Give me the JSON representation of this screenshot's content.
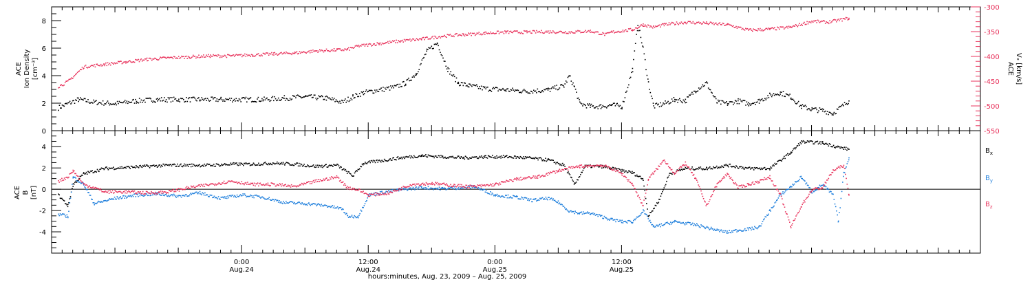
{
  "chart_data": [
    {
      "type": "scatter",
      "panel": "top",
      "title": "",
      "left_axis": {
        "label_lines": [
          "ACE",
          "Ion Density",
          "[cm⁻³]"
        ],
        "ylim": [
          0,
          9
        ],
        "ticks": [
          0,
          2,
          4,
          6,
          8
        ],
        "color": "#000000"
      },
      "right_axis": {
        "label_lines": [
          "ACE",
          "Vₓ [km/s]"
        ],
        "ylim": [
          -550,
          -300
        ],
        "ticks": [
          -550,
          -500,
          -450,
          -400,
          -350,
          -300
        ],
        "color": "#e8335c"
      },
      "series": [
        {
          "color": "#000000",
          "axis": "left",
          "points": [
            [
              -17.4,
              1.7
            ],
            [
              -16.5,
              2.0
            ],
            [
              -15.5,
              2.3
            ],
            [
              -14,
              2.1
            ],
            [
              -12,
              2.0
            ],
            [
              -10,
              2.2
            ],
            [
              -8,
              2.3
            ],
            [
              -6,
              2.3
            ],
            [
              -4,
              2.3
            ],
            [
              -2,
              2.3
            ],
            [
              0,
              2.3
            ],
            [
              2,
              2.3
            ],
            [
              4,
              2.4
            ],
            [
              6,
              2.5
            ],
            [
              8,
              2.4
            ],
            [
              9.5,
              2.1
            ],
            [
              10.5,
              2.5
            ],
            [
              11.5,
              2.8
            ],
            [
              13,
              3.0
            ],
            [
              14.5,
              3.2
            ],
            [
              15.5,
              3.5
            ],
            [
              16.5,
              4.2
            ],
            [
              17.5,
              5.8
            ],
            [
              18.5,
              6.4
            ],
            [
              19.5,
              4.5
            ],
            [
              20.5,
              3.5
            ],
            [
              21.5,
              3.3
            ],
            [
              23,
              3.1
            ],
            [
              25,
              3.0
            ],
            [
              27,
              2.9
            ],
            [
              29,
              3.0
            ],
            [
              30.5,
              3.3
            ],
            [
              31,
              4.0
            ],
            [
              31.5,
              3.2
            ],
            [
              32,
              2.0
            ],
            [
              33,
              1.8
            ],
            [
              34,
              1.8
            ],
            [
              35,
              1.9
            ],
            [
              36,
              1.8
            ],
            [
              37,
              4.5
            ],
            [
              37.5,
              7.8
            ],
            [
              38,
              6.0
            ],
            [
              38.5,
              3.5
            ],
            [
              39,
              1.8
            ],
            [
              40,
              2.0
            ],
            [
              41,
              2.3
            ],
            [
              42,
              2.2
            ],
            [
              43,
              3.0
            ],
            [
              44,
              3.5
            ],
            [
              45,
              2.1
            ],
            [
              46,
              2.0
            ],
            [
              47,
              2.2
            ],
            [
              48,
              2.0
            ],
            [
              49,
              2.2
            ],
            [
              50,
              2.6
            ],
            [
              51,
              2.8
            ],
            [
              52,
              2.5
            ],
            [
              53,
              1.8
            ],
            [
              54,
              1.6
            ],
            [
              55,
              1.5
            ],
            [
              56,
              1.3
            ],
            [
              57.5,
              2.2
            ]
          ]
        },
        {
          "color": "#e8335c",
          "axis": "right",
          "points": [
            [
              -17.4,
              -460
            ],
            [
              -16.5,
              -450
            ],
            [
              -15,
              -420
            ],
            [
              -13,
              -415
            ],
            [
              -11,
              -410
            ],
            [
              -9,
              -405
            ],
            [
              -7,
              -402
            ],
            [
              -5,
              -400
            ],
            [
              -3,
              -398
            ],
            [
              -1,
              -398
            ],
            [
              1,
              -396
            ],
            [
              3,
              -394
            ],
            [
              5,
              -392
            ],
            [
              7,
              -388
            ],
            [
              9,
              -386
            ],
            [
              10,
              -385
            ],
            [
              11,
              -378
            ],
            [
              13,
              -373
            ],
            [
              15,
              -368
            ],
            [
              17,
              -364
            ],
            [
              19,
              -358
            ],
            [
              21,
              -355
            ],
            [
              23,
              -352
            ],
            [
              25,
              -350
            ],
            [
              27,
              -350
            ],
            [
              29,
              -349
            ],
            [
              31,
              -350
            ],
            [
              33,
              -348
            ],
            [
              34.5,
              -355
            ],
            [
              35,
              -350
            ],
            [
              37,
              -345
            ],
            [
              38,
              -335
            ],
            [
              39,
              -340
            ],
            [
              40,
              -335
            ],
            [
              42,
              -330
            ],
            [
              44,
              -332
            ],
            [
              46,
              -335
            ],
            [
              48,
              -346
            ],
            [
              50,
              -344
            ],
            [
              52,
              -340
            ],
            [
              54,
              -328
            ],
            [
              55.5,
              -330
            ],
            [
              57.5,
              -322
            ]
          ]
        }
      ]
    },
    {
      "type": "scatter",
      "panel": "bottom",
      "title": "",
      "left_axis": {
        "label_lines": [
          "ACE",
          "B",
          "[nT]"
        ],
        "ylim": [
          -6,
          5.5
        ],
        "ticks": [
          -4,
          -2,
          0,
          2,
          4
        ],
        "color": "#000000"
      },
      "zero_line": true,
      "legend": "right",
      "series": [
        {
          "name": "Bx",
          "name_main": "B",
          "name_sub": "x",
          "color": "#000000",
          "points": [
            [
              -17.4,
              -0.5
            ],
            [
              -16.5,
              -1.5
            ],
            [
              -16,
              0.5
            ],
            [
              -15,
              1.5
            ],
            [
              -13,
              2.0
            ],
            [
              -11,
              2.1
            ],
            [
              -9,
              2.2
            ],
            [
              -7,
              2.3
            ],
            [
              -5,
              2.3
            ],
            [
              -3,
              2.3
            ],
            [
              -1,
              2.4
            ],
            [
              1,
              2.4
            ],
            [
              3,
              2.5
            ],
            [
              5,
              2.4
            ],
            [
              7,
              2.2
            ],
            [
              9,
              2.3
            ],
            [
              10.5,
              1.3
            ],
            [
              11.5,
              2.5
            ],
            [
              13,
              2.7
            ],
            [
              15,
              3.0
            ],
            [
              17,
              3.2
            ],
            [
              19,
              3.1
            ],
            [
              21,
              3.0
            ],
            [
              23,
              3.1
            ],
            [
              25,
              3.1
            ],
            [
              27,
              3.0
            ],
            [
              29,
              2.8
            ],
            [
              30.5,
              2.3
            ],
            [
              31.5,
              0.5
            ],
            [
              32.5,
              2.2
            ],
            [
              34,
              2.2
            ],
            [
              36,
              1.8
            ],
            [
              37,
              1.6
            ],
            [
              38,
              1.0
            ],
            [
              38.5,
              -2.5
            ],
            [
              39.5,
              -1.0
            ],
            [
              40.5,
              1.5
            ],
            [
              42,
              2.0
            ],
            [
              44,
              2.0
            ],
            [
              46,
              2.3
            ],
            [
              48,
              2.0
            ],
            [
              50,
              2.0
            ],
            [
              52,
              3.5
            ],
            [
              53,
              4.5
            ],
            [
              55,
              4.4
            ],
            [
              56.5,
              4.0
            ],
            [
              57.5,
              3.8
            ]
          ]
        },
        {
          "name": "By",
          "name_main": "B",
          "name_sub": "y",
          "color": "#1f7fdc",
          "points": [
            [
              -17.4,
              -2.3
            ],
            [
              -16.5,
              -2.5
            ],
            [
              -16,
              1.2
            ],
            [
              -15,
              0.5
            ],
            [
              -14,
              -1.3
            ],
            [
              -12,
              -0.8
            ],
            [
              -10,
              -0.5
            ],
            [
              -8,
              -0.4
            ],
            [
              -6,
              -0.6
            ],
            [
              -4,
              -0.3
            ],
            [
              -2,
              -0.8
            ],
            [
              0,
              -0.5
            ],
            [
              2,
              -0.7
            ],
            [
              4,
              -1.2
            ],
            [
              6,
              -1.3
            ],
            [
              8,
              -1.5
            ],
            [
              9.5,
              -1.8
            ],
            [
              10,
              -2.5
            ],
            [
              11,
              -2.5
            ],
            [
              12,
              -0.5
            ],
            [
              13,
              -0.3
            ],
            [
              15,
              0.0
            ],
            [
              17,
              0.2
            ],
            [
              19,
              0.1
            ],
            [
              21,
              0.2
            ],
            [
              22,
              0.3
            ],
            [
              24,
              -0.5
            ],
            [
              26,
              -0.7
            ],
            [
              27.5,
              -1.0
            ],
            [
              29,
              -0.8
            ],
            [
              30,
              -1.2
            ],
            [
              31,
              -2.0
            ],
            [
              32,
              -2.2
            ],
            [
              33,
              -2.2
            ],
            [
              34,
              -2.5
            ],
            [
              35,
              -2.8
            ],
            [
              36,
              -3.0
            ],
            [
              37,
              -3.0
            ],
            [
              38,
              -2.0
            ],
            [
              39,
              -3.5
            ],
            [
              41,
              -3.0
            ],
            [
              43,
              -3.3
            ],
            [
              45,
              -3.8
            ],
            [
              46,
              -4.0
            ],
            [
              47,
              -3.8
            ],
            [
              48,
              -3.7
            ],
            [
              49,
              -3.5
            ],
            [
              50,
              -2.0
            ],
            [
              51,
              -0.5
            ],
            [
              52,
              0.3
            ],
            [
              53,
              1.2
            ],
            [
              54,
              -0.2
            ],
            [
              55,
              0.5
            ],
            [
              56,
              -0.5
            ],
            [
              56.5,
              -3.0
            ],
            [
              57,
              1.5
            ],
            [
              57.5,
              3.0
            ]
          ]
        },
        {
          "name": "Bz",
          "name_main": "B",
          "name_sub": "z",
          "color": "#e8335c",
          "points": [
            [
              -17.4,
              0.8
            ],
            [
              -16.5,
              1.2
            ],
            [
              -16,
              1.8
            ],
            [
              -15,
              0.5
            ],
            [
              -14,
              0.2
            ],
            [
              -13,
              -0.2
            ],
            [
              -11,
              -0.2
            ],
            [
              -9,
              -0.3
            ],
            [
              -7,
              -0.2
            ],
            [
              -5,
              0.2
            ],
            [
              -3,
              0.5
            ],
            [
              -1,
              0.8
            ],
            [
              1,
              0.5
            ],
            [
              3,
              0.5
            ],
            [
              5,
              0.3
            ],
            [
              7,
              0.8
            ],
            [
              8,
              1.0
            ],
            [
              9,
              1.2
            ],
            [
              10,
              0.2
            ],
            [
              11,
              0.0
            ],
            [
              12,
              -0.5
            ],
            [
              14,
              -0.3
            ],
            [
              16,
              0.5
            ],
            [
              18,
              0.6
            ],
            [
              20,
              0.4
            ],
            [
              22,
              0.3
            ],
            [
              24,
              0.5
            ],
            [
              26,
              1.0
            ],
            [
              28,
              1.2
            ],
            [
              30,
              1.8
            ],
            [
              32,
              2.2
            ],
            [
              34,
              2.3
            ],
            [
              35,
              2.0
            ],
            [
              36,
              1.5
            ],
            [
              37,
              0.5
            ],
            [
              38,
              -1.5
            ],
            [
              38.5,
              1.0
            ],
            [
              40,
              2.8
            ],
            [
              41,
              1.5
            ],
            [
              42,
              2.5
            ],
            [
              43,
              1.0
            ],
            [
              44,
              -1.5
            ],
            [
              45,
              0.5
            ],
            [
              46,
              1.5
            ],
            [
              47,
              0.2
            ],
            [
              48,
              0.5
            ],
            [
              49,
              0.8
            ],
            [
              50,
              1.2
            ],
            [
              51,
              -0.5
            ],
            [
              52,
              -3.5
            ],
            [
              53,
              -1.5
            ],
            [
              54,
              0.0
            ],
            [
              55,
              0.2
            ],
            [
              56,
              1.8
            ],
            [
              57,
              2.3
            ],
            [
              57.5,
              -0.5
            ]
          ]
        }
      ]
    }
  ],
  "x_axis": {
    "xlim": [
      -18,
      70
    ],
    "major_ticks": [
      0,
      12,
      24,
      36
    ],
    "major_labels": [
      {
        "t": 0,
        "line1": "0:00",
        "line2": "Aug.24"
      },
      {
        "t": 12,
        "line1": "12:00",
        "line2": "Aug.24"
      },
      {
        "t": 24,
        "line1": "0:00",
        "line2": "Aug.25"
      },
      {
        "t": 36,
        "line1": "12:00",
        "line2": "Aug.25"
      }
    ],
    "minor_step_hours": 1,
    "title": "hours:minutes, Aug. 23, 2009 – Aug. 25, 2009"
  }
}
